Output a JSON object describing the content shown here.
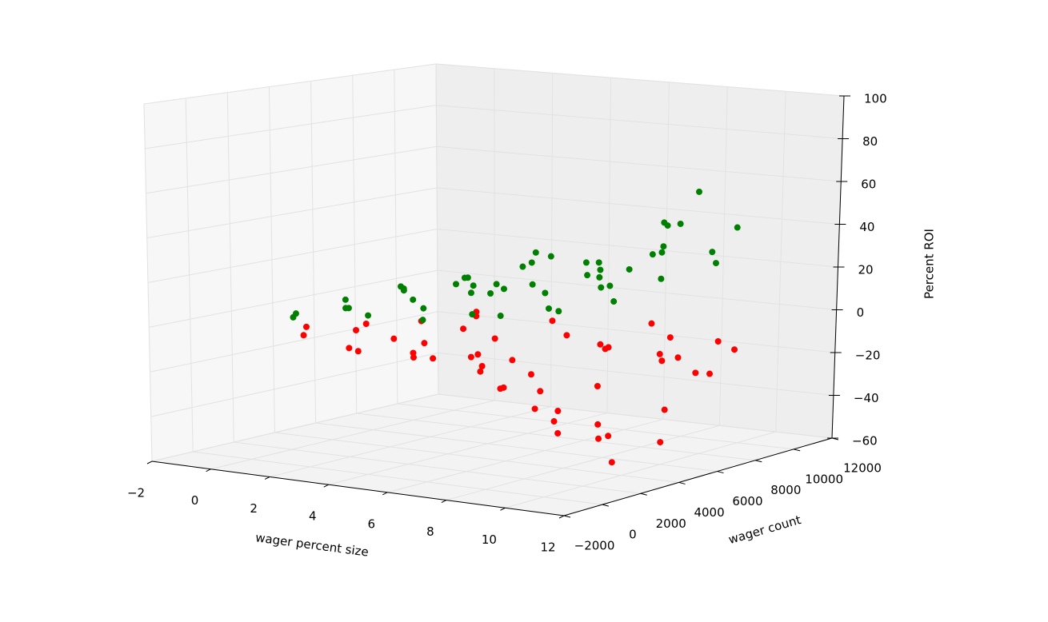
{
  "chart_data": {
    "type": "scatter",
    "xlabel": "wager percent size",
    "ylabel": "wager count",
    "zlabel": "Percent ROI",
    "xlim": [
      -2,
      12
    ],
    "ylim": [
      -2000,
      12000
    ],
    "zlim": [
      -60,
      100
    ],
    "xticks": [
      {
        "value": -2,
        "label": "−2"
      },
      0,
      2,
      4,
      6,
      8,
      10,
      12
    ],
    "yticks": [
      {
        "value": -2000,
        "label": "−2000"
      },
      0,
      2000,
      4000,
      6000,
      8000,
      10000,
      12000
    ],
    "zticks": [
      {
        "value": -60,
        "label": "−60"
      },
      {
        "value": -40,
        "label": "−40"
      },
      {
        "value": -20,
        "label": "−20"
      },
      0,
      20,
      40,
      60,
      80,
      100
    ],
    "grid": true,
    "series": [
      {
        "color": "#ff0000",
        "x": [
          0.2,
          0.5,
          0.8,
          1,
          1.2,
          1.5,
          1.8,
          2,
          2.2,
          2.5,
          2.8,
          3,
          3.2,
          3.5,
          3.8,
          4,
          4.2,
          4.5,
          4.8,
          5,
          5.2,
          5.5,
          5.8,
          6,
          6.2,
          6.5,
          6.8,
          7,
          7.2,
          7.5,
          7.8,
          8,
          8.2,
          8.5,
          8.8,
          9,
          9.2,
          9.5,
          9.8,
          10,
          10.2,
          10.5,
          10.8,
          11,
          11,
          10.6,
          9.6,
          8.6,
          7.6,
          6.6
        ],
        "y": [
          2500,
          5000,
          1500,
          7000,
          3500,
          9000,
          4500,
          2000,
          8000,
          5000,
          6500,
          1000,
          7500,
          3000,
          9500,
          5500,
          2000,
          6500,
          4000,
          8500,
          1500,
          6000,
          3000,
          9000,
          2500,
          5000,
          8000,
          4000,
          7000,
          1500,
          6000,
          3500,
          9500,
          5000,
          2500,
          7500,
          4000,
          8500,
          1000,
          6000,
          3000,
          9000,
          5000,
          2000,
          7000,
          8000,
          6500,
          8500,
          9000,
          3000
        ],
        "z": [
          -5,
          -8,
          -6,
          -10,
          -7,
          -9,
          -12,
          -11,
          -8,
          -14,
          -10,
          -9,
          -16,
          -13,
          -11,
          -18,
          -12,
          -22,
          -15,
          -14,
          -10,
          -26,
          -18,
          -20,
          -14,
          -30,
          -16,
          -35,
          -12,
          -20,
          -28,
          -38,
          -22,
          -42,
          -30,
          -18,
          -45,
          -25,
          -35,
          -50,
          -40,
          -14,
          -32,
          -48,
          -20,
          -8,
          -12,
          -10,
          -6,
          -24
        ]
      },
      {
        "color": "#008000",
        "x": [
          0.2,
          0.5,
          0.8,
          1,
          1.2,
          1.5,
          1.8,
          2,
          2.2,
          2.5,
          2.8,
          3,
          3.2,
          3.5,
          3.8,
          4,
          4.2,
          4.5,
          4.8,
          5,
          5.2,
          5.5,
          5.8,
          6,
          6.2,
          6.5,
          6.8,
          7,
          7.2,
          7.5,
          7.8,
          8,
          8.2,
          8.5,
          8.8,
          9,
          9.2,
          9.5,
          9.8,
          10,
          10.2,
          10.5,
          10.8,
          11,
          11,
          10.6,
          9.6,
          8.6,
          7.6,
          6.6
        ],
        "y": [
          2000,
          4000,
          1000,
          6000,
          3000,
          8000,
          5000,
          2000,
          9000,
          4000,
          7000,
          1500,
          6000,
          3000,
          8500,
          5000,
          2500,
          7000,
          4000,
          9500,
          1000,
          6000,
          3500,
          8000,
          2000,
          5500,
          9000,
          4000,
          7000,
          1500,
          6000,
          3000,
          9500,
          5000,
          2000,
          7500,
          4000,
          8500,
          1000,
          6000,
          3000,
          9000,
          5000,
          2000,
          7000,
          7800,
          6500,
          8000,
          9000,
          3000
        ],
        "z": [
          2,
          5,
          3,
          8,
          4,
          6,
          10,
          7,
          5,
          12,
          9,
          6,
          15,
          11,
          8,
          18,
          9,
          20,
          14,
          12,
          8,
          25,
          16,
          22,
          10,
          30,
          18,
          35,
          14,
          12,
          28,
          20,
          40,
          24,
          16,
          45,
          30,
          58,
          18,
          38,
          26,
          42,
          50,
          22,
          35,
          28,
          22,
          30,
          26,
          20
        ]
      }
    ]
  }
}
